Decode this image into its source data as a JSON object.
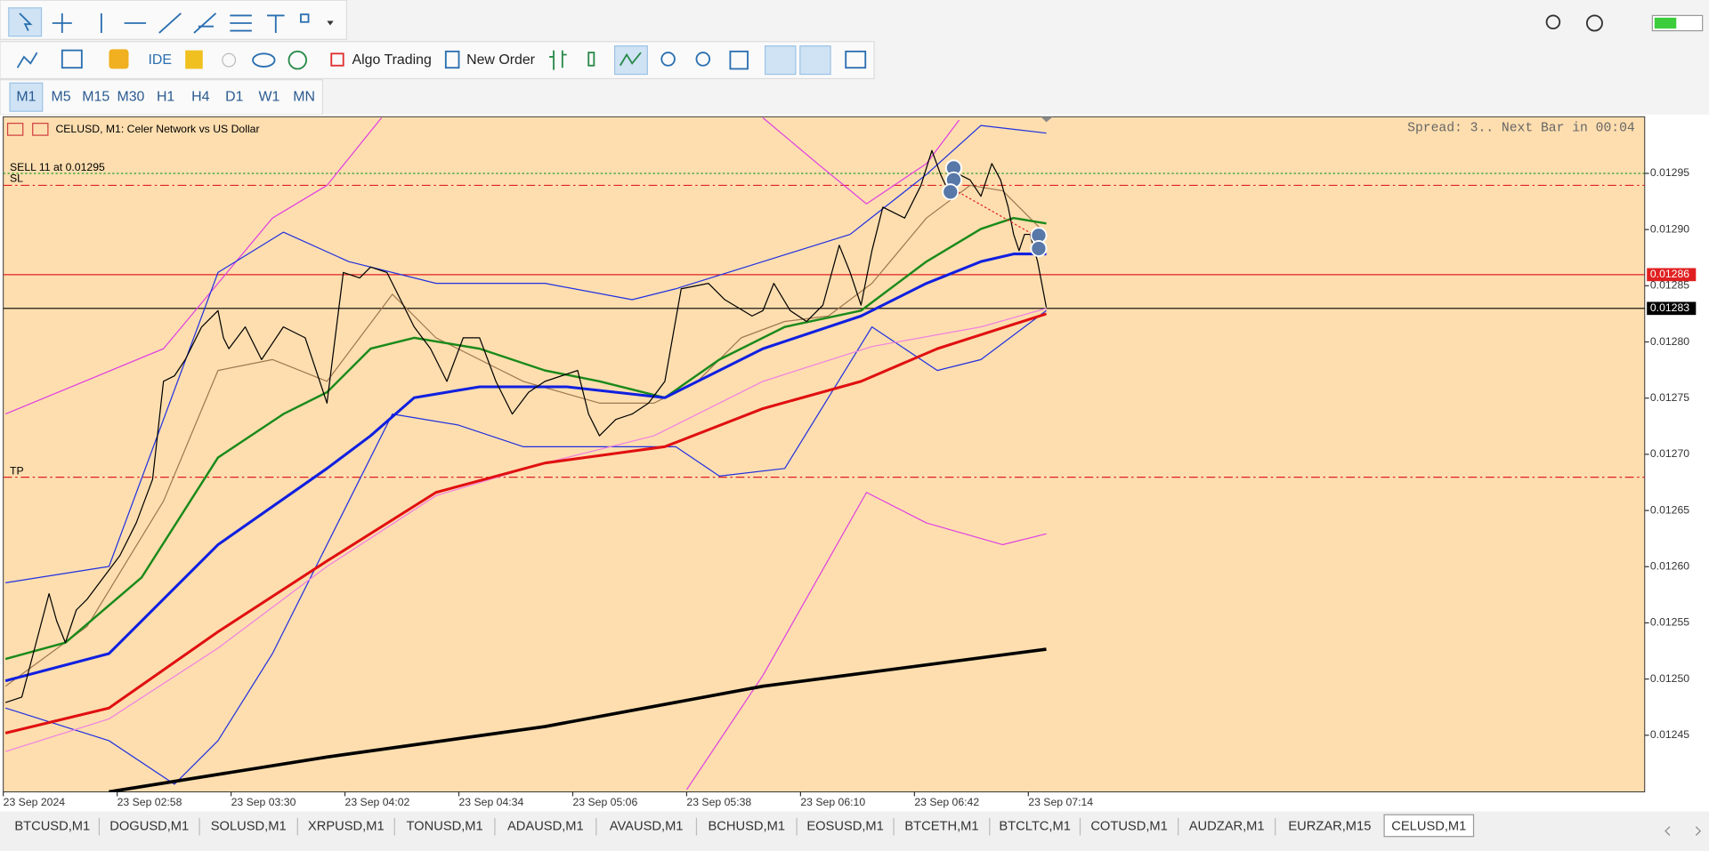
{
  "toolbar": {
    "ide": "IDE",
    "algo_trading": "Algo Trading",
    "new_order": "New Order"
  },
  "timeframes": [
    "M1",
    "M5",
    "M15",
    "M30",
    "H1",
    "H4",
    "D1",
    "W1",
    "MN"
  ],
  "chart": {
    "header": "CELUSD, M1:  Celer Network vs US Dollar",
    "status": "Spread: 3.. Next Bar in 00:04",
    "order_label": "SELL 11 at 0.01295",
    "sl_label": "SL",
    "tp_label": "TP",
    "price_axis": [
      "0.01295",
      "0.01290",
      "0.01285",
      "0.01280",
      "0.01275",
      "0.01270",
      "0.01265",
      "0.01260",
      "0.01255",
      "0.01250",
      "0.01245"
    ],
    "bid_tag": "0.01286",
    "last_tag": "0.01283",
    "time_axis": [
      "23 Sep 2024",
      "23 Sep 02:58",
      "23 Sep 03:30",
      "23 Sep 04:02",
      "23 Sep 04:34",
      "23 Sep 05:06",
      "23 Sep 05:38",
      "23 Sep 06:10",
      "23 Sep 06:42",
      "23 Sep 07:14"
    ]
  },
  "tabs": [
    "BTCUSD,M1",
    "DOGUSD,M1",
    "SOLUSD,M1",
    "XRPUSD,M1",
    "TONUSD,M1",
    "ADAUSD,M1",
    "AVAUSD,M1",
    "BCHUSD,M1",
    "EOSUSD,M1",
    "BTCETH,M1",
    "BTCLTC,M1",
    "COTUSD,M1",
    "AUDZAR,M1",
    "EURZAR,M15",
    "CELUSD,M1"
  ]
}
